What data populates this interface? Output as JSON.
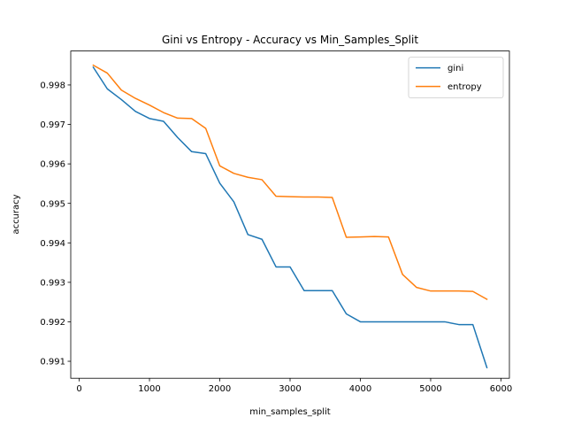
{
  "chart_data": {
    "type": "line",
    "title": "Gini vs Entropy - Accuracy vs Min_Samples_Split",
    "xlabel": "min_samples_split",
    "ylabel": "accuracy",
    "xlim": [
      -120,
      6120
    ],
    "ylim": [
      0.99057,
      0.99886
    ],
    "xticks": [
      0,
      1000,
      2000,
      3000,
      4000,
      5000,
      6000
    ],
    "yticks": [
      0.991,
      0.992,
      0.993,
      0.994,
      0.995,
      0.996,
      0.997,
      0.998
    ],
    "ytick_labels": [
      "0.991",
      "0.992",
      "0.993",
      "0.994",
      "0.995",
      "0.996",
      "0.997",
      "0.998"
    ],
    "grid": false,
    "legend_position": "top-right",
    "x": [
      200,
      400,
      600,
      800,
      1000,
      1200,
      1400,
      1600,
      1800,
      2000,
      2200,
      2400,
      2600,
      2800,
      3000,
      3200,
      3400,
      3600,
      3800,
      4000,
      4200,
      4400,
      4600,
      4800,
      5000,
      5200,
      5400,
      5600,
      5800
    ],
    "series": [
      {
        "name": "gini",
        "color": "#1f77b4",
        "values": [
          0.99845,
          0.9979,
          0.99763,
          0.99733,
          0.99715,
          0.99708,
          0.99667,
          0.99631,
          0.99626,
          0.99551,
          0.99504,
          0.99421,
          0.99409,
          0.99339,
          0.99339,
          0.99279,
          0.99279,
          0.99279,
          0.9922,
          0.992,
          0.992,
          0.992,
          0.992,
          0.992,
          0.992,
          0.992,
          0.99193,
          0.99193,
          0.99084
        ]
      },
      {
        "name": "entropy",
        "color": "#ff7f0e",
        "values": [
          0.9985,
          0.9983,
          0.99787,
          0.99766,
          0.99749,
          0.9973,
          0.99716,
          0.99715,
          0.9969,
          0.99595,
          0.99576,
          0.99566,
          0.9956,
          0.99518,
          0.99517,
          0.99516,
          0.99516,
          0.99515,
          0.99414,
          0.99415,
          0.99416,
          0.99415,
          0.9932,
          0.99287,
          0.99278,
          0.99278,
          0.99278,
          0.99277,
          0.99257
        ]
      }
    ]
  }
}
